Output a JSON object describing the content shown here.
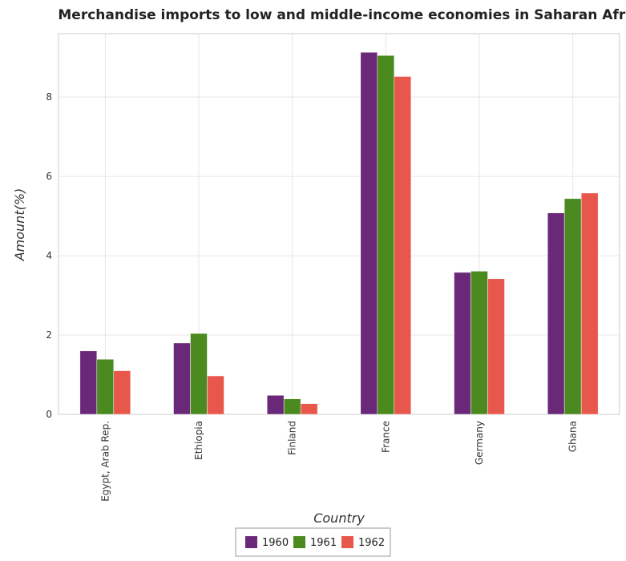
{
  "chart_data": {
    "type": "bar",
    "title": "Merchandise imports to low and middle-income economies in Saharan Africa",
    "xlabel": "Country",
    "ylabel": "Amount(%)",
    "categories": [
      "Egypt, Arab Rep.",
      "Ethiopia",
      "Finland",
      "France",
      "Germany",
      "Ghana"
    ],
    "series": [
      {
        "name": "1960",
        "color": "#6a2878",
        "values": [
          1.6,
          1.8,
          0.48,
          9.13,
          3.58,
          5.08
        ]
      },
      {
        "name": "1961",
        "color": "#4a8a1e",
        "values": [
          1.39,
          2.04,
          0.39,
          9.05,
          3.61,
          5.44
        ]
      },
      {
        "name": "1962",
        "color": "#e8574c",
        "values": [
          1.1,
          0.97,
          0.27,
          8.52,
          3.42,
          5.58
        ]
      }
    ],
    "yticks": [
      0,
      2,
      4,
      6,
      8
    ],
    "ylim": [
      0,
      9.6
    ],
    "grid": true,
    "legend": "bottom-center"
  }
}
